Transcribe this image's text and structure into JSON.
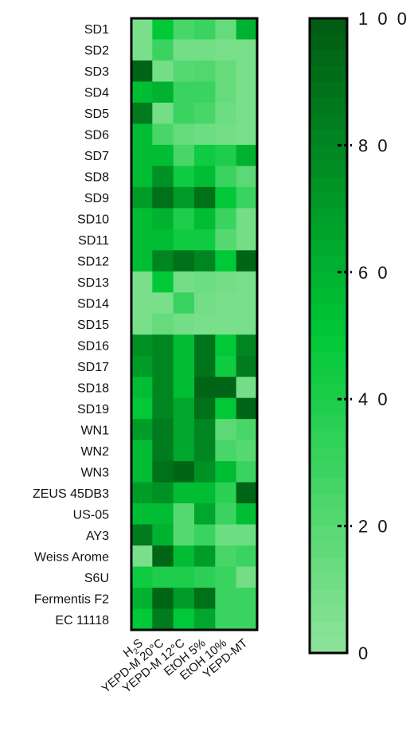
{
  "chart_data": {
    "type": "heatmap",
    "rows": [
      "SD1",
      "SD2",
      "SD3",
      "SD4",
      "SD5",
      "SD6",
      "SD7",
      "SD8",
      "SD9",
      "SD10",
      "SD11",
      "SD12",
      "SD13",
      "SD14",
      "SD15",
      "SD16",
      "SD17",
      "SD18",
      "SD19",
      "WN1",
      "WN2",
      "WN3",
      "ZEUS 45DB3",
      "US-05",
      "AY3",
      "Weiss Arome",
      "S6U",
      "Fermentis F2",
      "EC 11118"
    ],
    "columns": [
      {
        "main": "H",
        "sub": "2",
        "tail": "S"
      },
      {
        "main": "YEPD-M 20°C"
      },
      {
        "main": "YEPD-M 12°C"
      },
      {
        "main": "EtOH 5%"
      },
      {
        "main": "EtOH 10%"
      },
      {
        "main": "YEPD-MT"
      }
    ],
    "values": [
      [
        8,
        50,
        25,
        30,
        15,
        60
      ],
      [
        8,
        30,
        10,
        10,
        8,
        8
      ],
      [
        95,
        10,
        20,
        22,
        15,
        8
      ],
      [
        55,
        60,
        30,
        30,
        15,
        8
      ],
      [
        85,
        10,
        30,
        25,
        12,
        8
      ],
      [
        55,
        25,
        15,
        12,
        10,
        8
      ],
      [
        55,
        55,
        25,
        45,
        40,
        60
      ],
      [
        55,
        75,
        45,
        55,
        30,
        18
      ],
      [
        70,
        90,
        70,
        90,
        50,
        30
      ],
      [
        55,
        60,
        40,
        55,
        30,
        10
      ],
      [
        55,
        55,
        45,
        45,
        20,
        10
      ],
      [
        55,
        80,
        90,
        80,
        50,
        95
      ],
      [
        8,
        50,
        10,
        12,
        10,
        8
      ],
      [
        8,
        8,
        30,
        10,
        8,
        8
      ],
      [
        8,
        15,
        10,
        8,
        8,
        8
      ],
      [
        75,
        80,
        55,
        88,
        50,
        80
      ],
      [
        70,
        80,
        55,
        88,
        45,
        85
      ],
      [
        55,
        80,
        55,
        95,
        95,
        10
      ],
      [
        50,
        80,
        65,
        90,
        50,
        95
      ],
      [
        70,
        85,
        65,
        80,
        18,
        25
      ],
      [
        55,
        85,
        65,
        80,
        25,
        20
      ],
      [
        55,
        90,
        95,
        75,
        55,
        30
      ],
      [
        70,
        75,
        55,
        55,
        35,
        95
      ],
      [
        55,
        55,
        20,
        65,
        30,
        55
      ],
      [
        85,
        60,
        20,
        30,
        12,
        12
      ],
      [
        8,
        95,
        55,
        70,
        25,
        30
      ],
      [
        45,
        40,
        40,
        35,
        30,
        10
      ],
      [
        60,
        95,
        70,
        90,
        30,
        30
      ],
      [
        50,
        85,
        50,
        65,
        30,
        30
      ]
    ],
    "colorbar": {
      "min": 0,
      "max": 100,
      "ticks": [
        0,
        20,
        40,
        60,
        80,
        100
      ],
      "tick_labels": [
        "0",
        "2 0",
        "4 0",
        "6 0",
        "8 0",
        "1 0 0"
      ],
      "color_low": "#90e39a",
      "color_mid": "#00c837",
      "color_high": "#005a12"
    },
    "title": "",
    "xlabel": "",
    "ylabel": ""
  }
}
